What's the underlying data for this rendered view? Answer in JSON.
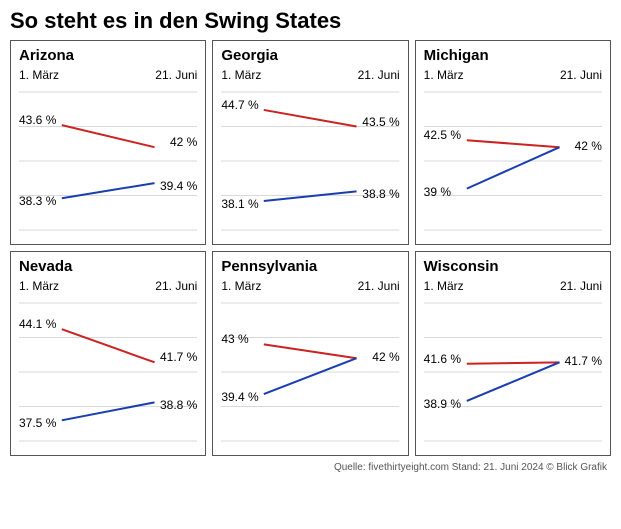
{
  "title": "So steht es in den Swing States",
  "footer": "Quelle: fivethirtyeight.com Stand: 21. Juni 2024   © Blick Grafik",
  "date_left": "1. März",
  "date_right": "21. Juni",
  "chart": {
    "type": "line",
    "grid_color": "#d9d9d9",
    "grid_lines": 5,
    "red": "#cc2222",
    "blue": "#1a3db0",
    "line_width": 2,
    "label_fontsize": 12,
    "y_domain": [
      36,
      46
    ]
  },
  "panels": [
    {
      "name": "Arizona",
      "red": {
        "start": 43.6,
        "end": 42.0,
        "start_label": "43.6 %",
        "end_label": "42 %"
      },
      "blue": {
        "start": 38.3,
        "end": 39.4,
        "start_label": "38.3 %",
        "end_label": "39.4 %"
      }
    },
    {
      "name": "Georgia",
      "red": {
        "start": 44.7,
        "end": 43.5,
        "start_label": "44.7 %",
        "end_label": "43.5 %"
      },
      "blue": {
        "start": 38.1,
        "end": 38.8,
        "start_label": "38.1 %",
        "end_label": "38.8 %"
      }
    },
    {
      "name": "Michigan",
      "red": {
        "start": 42.5,
        "end": 42.0,
        "start_label": "42.5 %",
        "end_label": "42 %",
        "merge_end": true
      },
      "blue": {
        "start": 39.0,
        "end": 42.0,
        "start_label": "39 %",
        "end_label": ""
      }
    },
    {
      "name": "Nevada",
      "red": {
        "start": 44.1,
        "end": 41.7,
        "start_label": "44.1 %",
        "end_label": "41.7 %"
      },
      "blue": {
        "start": 37.5,
        "end": 38.8,
        "start_label": "37.5 %",
        "end_label": "38.8 %"
      }
    },
    {
      "name": "Pennsylvania",
      "red": {
        "start": 43.0,
        "end": 42.0,
        "start_label": "43 %",
        "end_label": "42 %",
        "merge_end": true
      },
      "blue": {
        "start": 39.4,
        "end": 42.0,
        "start_label": "39.4 %",
        "end_label": ""
      }
    },
    {
      "name": "Wisconsin",
      "red": {
        "start": 41.6,
        "end": 41.7,
        "start_label": "41.6 %",
        "end_label": "41.7 %",
        "merge_end": true
      },
      "blue": {
        "start": 38.9,
        "end": 41.7,
        "start_label": "38.9 %",
        "end_label": ""
      }
    }
  ]
}
